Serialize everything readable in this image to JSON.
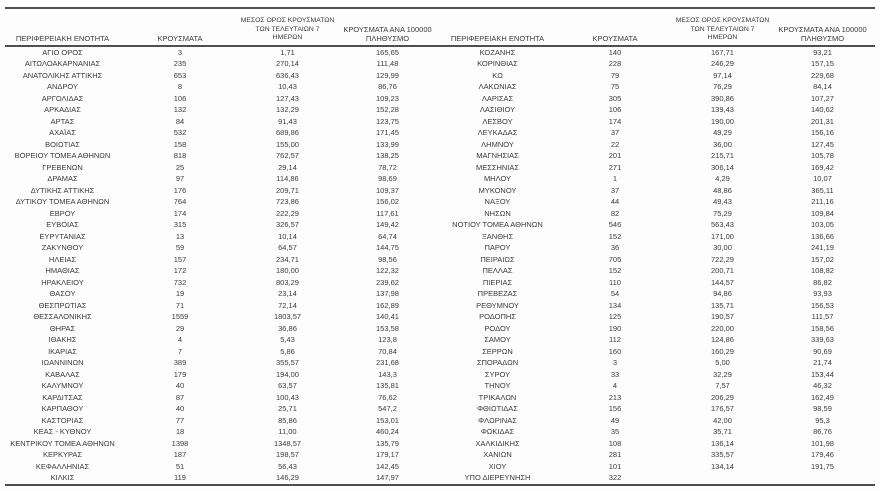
{
  "colors": {
    "text": "#3a3a3a",
    "rule": "#4f4f4f",
    "background": "#fdfdfd"
  },
  "chart_data": {
    "type": "table",
    "title": "",
    "columns": [
      "ΠΕΡΙΦΕΡΕΙΑΚΗ ΕΝΟΤΗΤΑ",
      "ΚΡΟΥΣΜΑΤΑ",
      "ΜΕΣΟΣ ΟΡΟΣ ΚΡΟΥΣΜΑΤΩΝ\nΤΩΝ ΤΕΛΕΥΤΑΙΩΝ 7 ΗΜΕΡΩΝ",
      "ΚΡΟΥΣΜΑΤΑ ΑΝΑ 100000\nΠΛΗΘΥΣΜΟ"
    ],
    "panels": [
      {
        "rows": [
          [
            "ΑΓΙΟ ΟΡΟΣ",
            "3",
            "1,71",
            "165,65"
          ],
          [
            "ΑΙΤΩΛΟΑΚΑΡΝΑΝΙΑΣ",
            "235",
            "270,14",
            "111,48"
          ],
          [
            "ΑΝΑΤΟΛΙΚΗΣ ΑΤΤΙΚΗΣ",
            "653",
            "636,43",
            "129,99"
          ],
          [
            "ΑΝΔΡΟΥ",
            "8",
            "10,43",
            "86,76"
          ],
          [
            "ΑΡΓΟΛΙΔΑΣ",
            "106",
            "127,43",
            "109,23"
          ],
          [
            "ΑΡΚΑΔΙΑΣ",
            "132",
            "132,29",
            "152,28"
          ],
          [
            "ΑΡΤΑΣ",
            "84",
            "91,43",
            "123,75"
          ],
          [
            "ΑΧΑΪΑΣ",
            "532",
            "689,86",
            "171,45"
          ],
          [
            "ΒΟΙΩΤΙΑΣ",
            "158",
            "155,00",
            "133,99"
          ],
          [
            "ΒΟΡΕΙΟΥ ΤΟΜΕΑ ΑΘΗΝΩΝ",
            "818",
            "762,57",
            "138,25"
          ],
          [
            "ΓΡΕΒΕΝΩΝ",
            "25",
            "29,14",
            "78,72"
          ],
          [
            "ΔΡΑΜΑΣ",
            "97",
            "114,86",
            "98,69"
          ],
          [
            "ΔΥΤΙΚΗΣ ΑΤΤΙΚΗΣ",
            "176",
            "209,71",
            "109,37"
          ],
          [
            "ΔΥΤΙΚΟΥ ΤΟΜΕΑ ΑΘΗΝΩΝ",
            "764",
            "723,86",
            "156,02"
          ],
          [
            "ΕΒΡΟΥ",
            "174",
            "222,29",
            "117,61"
          ],
          [
            "ΕΥΒΟΙΑΣ",
            "315",
            "326,57",
            "149,42"
          ],
          [
            "ΕΥΡΥΤΑΝΙΑΣ",
            "13",
            "10,14",
            "64,74"
          ],
          [
            "ΖΑΚΥΝΘΟΥ",
            "59",
            "64,57",
            "144,75"
          ],
          [
            "ΗΛΕΙΑΣ",
            "157",
            "234,71",
            "98,56"
          ],
          [
            "ΗΜΑΘΙΑΣ",
            "172",
            "180,00",
            "122,32"
          ],
          [
            "ΗΡΑΚΛΕΙΟΥ",
            "732",
            "803,29",
            "239,62"
          ],
          [
            "ΘΑΣΟΥ",
            "19",
            "23,14",
            "137,98"
          ],
          [
            "ΘΕΣΠΡΩΤΙΑΣ",
            "71",
            "72,14",
            "162,89"
          ],
          [
            "ΘΕΣΣΑΛΟΝΙΚΗΣ",
            "1559",
            "1803,57",
            "140,41"
          ],
          [
            "ΘΗΡΑΣ",
            "29",
            "36,86",
            "153,58"
          ],
          [
            "ΙΘΑΚΗΣ",
            "4",
            "5,43",
            "123,8"
          ],
          [
            "ΙΚΑΡΙΑΣ",
            "7",
            "5,86",
            "70,84"
          ],
          [
            "ΙΩΑΝΝΙΝΩΝ",
            "389",
            "355,57",
            "231,68"
          ],
          [
            "ΚΑΒΑΛΑΣ",
            "179",
            "194,00",
            "143,3"
          ],
          [
            "ΚΑΛΥΜΝΟΥ",
            "40",
            "63,57",
            "135,81"
          ],
          [
            "ΚΑΡΔΙΤΣΑΣ",
            "87",
            "100,43",
            "76,62"
          ],
          [
            "ΚΑΡΠΑΘΟΥ",
            "40",
            "25,71",
            "547,2"
          ],
          [
            "ΚΑΣΤΟΡΙΑΣ",
            "77",
            "85,86",
            "153,01"
          ],
          [
            "ΚΕΑΣ - ΚΥΘΝΟΥ",
            "18",
            "11,00",
            "460,24"
          ],
          [
            "ΚΕΝΤΡΙΚΟΥ ΤΟΜΕΑ ΑΘΗΝΩΝ",
            "1398",
            "1348,57",
            "135,79"
          ],
          [
            "ΚΕΡΚΥΡΑΣ",
            "187",
            "198,57",
            "179,17"
          ],
          [
            "ΚΕΦΑΛΛΗΝΙΑΣ",
            "51",
            "56,43",
            "142,45"
          ],
          [
            "ΚΙΛΚΙΣ",
            "119",
            "146,29",
            "147,97"
          ]
        ]
      },
      {
        "rows": [
          [
            "ΚΟΖΑΝΗΣ",
            "140",
            "167,71",
            "93,21"
          ],
          [
            "ΚΟΡΙΝΘΙΑΣ",
            "228",
            "246,29",
            "157,15"
          ],
          [
            "ΚΩ",
            "79",
            "97,14",
            "229,68"
          ],
          [
            "ΛΑΚΩΝΙΑΣ",
            "75",
            "76,29",
            "84,14"
          ],
          [
            "ΛΑΡΙΣΑΣ",
            "305",
            "390,86",
            "107,27"
          ],
          [
            "ΛΑΣΙΘΙΟΥ",
            "106",
            "139,43",
            "140,62"
          ],
          [
            "ΛΕΣΒΟΥ",
            "174",
            "190,00",
            "201,31"
          ],
          [
            "ΛΕΥΚΑΔΑΣ",
            "37",
            "49,29",
            "156,16"
          ],
          [
            "ΛΗΜΝΟΥ",
            "22",
            "36,00",
            "127,45"
          ],
          [
            "ΜΑΓΝΗΣΙΑΣ",
            "201",
            "215,71",
            "105,78"
          ],
          [
            "ΜΕΣΣΗΝΙΑΣ",
            "271",
            "306,14",
            "169,42"
          ],
          [
            "ΜΗΛΟΥ",
            "1",
            "4,29",
            "10,07"
          ],
          [
            "ΜΥΚΟΝΟΥ",
            "37",
            "48,86",
            "365,11"
          ],
          [
            "ΝΑΞΟΥ",
            "44",
            "49,43",
            "211,16"
          ],
          [
            "ΝΗΣΩΝ",
            "82",
            "75,29",
            "109,84"
          ],
          [
            "ΝΟΤΙΟΥ ΤΟΜΕΑ ΑΘΗΝΩΝ",
            "546",
            "563,43",
            "103,05"
          ],
          [
            "ΞΑΝΘΗΣ",
            "152",
            "171,00",
            "136,66"
          ],
          [
            "ΠΑΡΟΥ",
            "36",
            "30,00",
            "241,19"
          ],
          [
            "ΠΕΙΡΑΙΩΣ",
            "705",
            "722,29",
            "157,02"
          ],
          [
            "ΠΕΛΛΑΣ",
            "152",
            "200,71",
            "108,82"
          ],
          [
            "ΠΙΕΡΙΑΣ",
            "110",
            "144,57",
            "86,82"
          ],
          [
            "ΠΡΕΒΕΖΑΣ",
            "54",
            "94,86",
            "93,93"
          ],
          [
            "ΡΕΘΥΜΝΟΥ",
            "134",
            "135,71",
            "156,53"
          ],
          [
            "ΡΟΔΟΠΗΣ",
            "125",
            "190,57",
            "111,57"
          ],
          [
            "ΡΟΔΟΥ",
            "190",
            "220,00",
            "158,56"
          ],
          [
            "ΣΑΜΟΥ",
            "112",
            "124,86",
            "339,63"
          ],
          [
            "ΣΕΡΡΩΝ",
            "160",
            "160,29",
            "90,69"
          ],
          [
            "ΣΠΟΡΑΔΩΝ",
            "3",
            "5,00",
            "21,74"
          ],
          [
            "ΣΥΡΟΥ",
            "33",
            "32,29",
            "153,44"
          ],
          [
            "ΤΗΝΟΥ",
            "4",
            "7,57",
            "46,32"
          ],
          [
            "ΤΡΙΚΑΛΩΝ",
            "213",
            "206,29",
            "162,49"
          ],
          [
            "ΦΘΙΩΤΙΔΑΣ",
            "156",
            "176,57",
            "98,59"
          ],
          [
            "ΦΛΩΡΙΝΑΣ",
            "49",
            "42,00",
            "95,3"
          ],
          [
            "ΦΩΚΙΔΑΣ",
            "35",
            "35,71",
            "86,76"
          ],
          [
            "ΧΑΛΚΙΔΙΚΗΣ",
            "108",
            "136,14",
            "101,98"
          ],
          [
            "ΧΑΝΙΩΝ",
            "281",
            "335,57",
            "179,46"
          ],
          [
            "ΧΙΟΥ",
            "101",
            "134,14",
            "191,75"
          ],
          [
            "ΥΠΟ ΔΙΕΡΕΥΝΗΣΗ",
            "322",
            "",
            ""
          ]
        ]
      }
    ]
  }
}
